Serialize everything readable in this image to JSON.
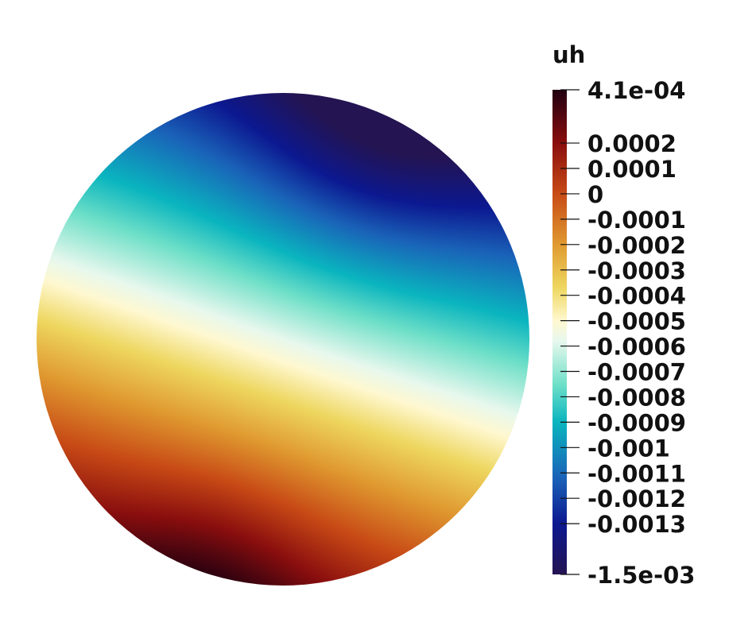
{
  "chart_data": {
    "type": "heatmap",
    "field_name": "uh",
    "range": [
      -0.0015,
      0.00041
    ],
    "range_labels": {
      "max": "4.1e-04",
      "min": "-1.5e-03"
    },
    "ticks": [
      {
        "value": 0.0002,
        "label": "0.0002"
      },
      {
        "value": 0.0001,
        "label": "0.0001"
      },
      {
        "value": 0,
        "label": "0"
      },
      {
        "value": -0.0001,
        "label": "-0.0001"
      },
      {
        "value": -0.0002,
        "label": "-0.0002"
      },
      {
        "value": -0.0003,
        "label": "-0.0003"
      },
      {
        "value": -0.0004,
        "label": "-0.0004"
      },
      {
        "value": -0.0005,
        "label": "-0.0005"
      },
      {
        "value": -0.0006,
        "label": "-0.0006"
      },
      {
        "value": -0.0007,
        "label": "-0.0007"
      },
      {
        "value": -0.0008,
        "label": "-0.0008"
      },
      {
        "value": -0.0009,
        "label": "-0.0009"
      },
      {
        "value": -0.001,
        "label": "-0.001"
      },
      {
        "value": -0.0011,
        "label": "-0.0011"
      },
      {
        "value": -0.0012,
        "label": "-0.0012"
      },
      {
        "value": -0.0013,
        "label": "-0.0013"
      }
    ],
    "colormap": [
      {
        "value": 0.00041,
        "color": "#200010"
      },
      {
        "value": 0.0002,
        "color": "#8a0e0e"
      },
      {
        "value": 0.0,
        "color": "#c84a16"
      },
      {
        "value": -0.0002,
        "color": "#e09a30"
      },
      {
        "value": -0.00037,
        "color": "#eed760"
      },
      {
        "value": -0.0005,
        "color": "#fff8d0"
      },
      {
        "value": -0.00058,
        "color": "#e8f8ee"
      },
      {
        "value": -0.00075,
        "color": "#6fe0c8"
      },
      {
        "value": -0.0009,
        "color": "#0ab5bf"
      },
      {
        "value": -0.00112,
        "color": "#1a62b8"
      },
      {
        "value": -0.0013,
        "color": "#0c1890"
      },
      {
        "value": -0.0015,
        "color": "#241452"
      }
    ],
    "domain_shape": "disk"
  }
}
